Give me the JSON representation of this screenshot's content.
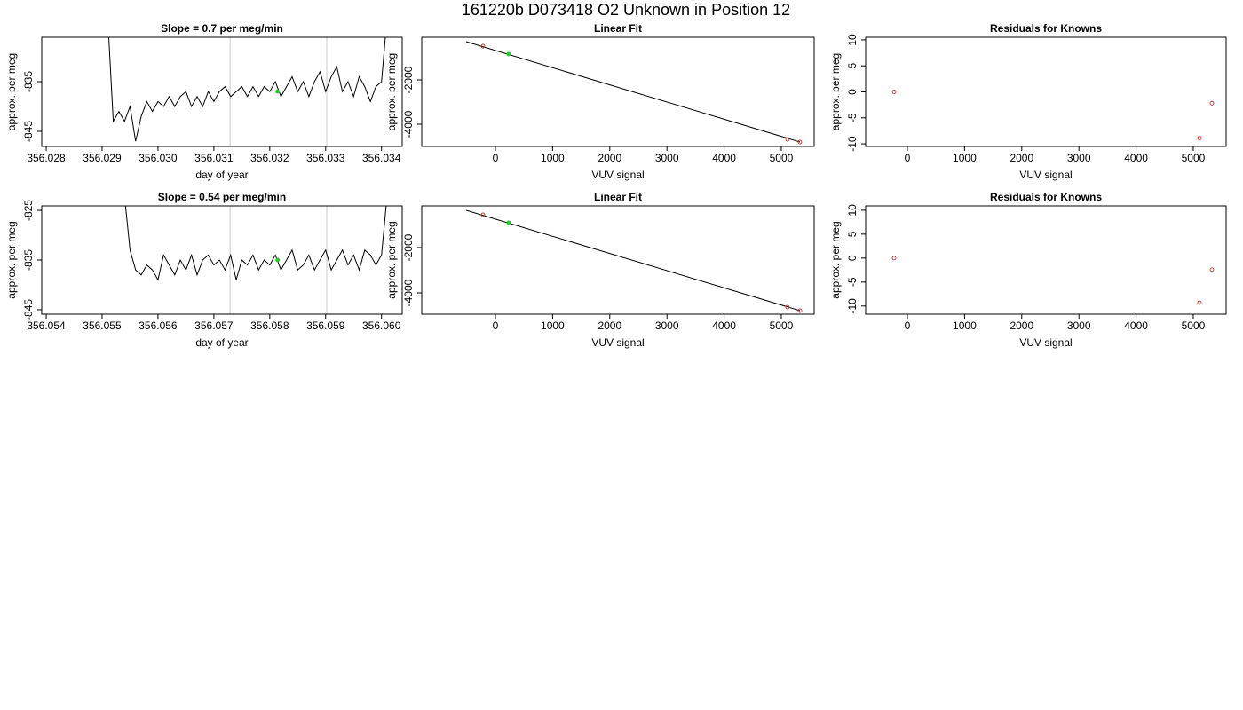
{
  "title": "161220b     D073418   O2 Unknown in Position  12",
  "chart_data": [
    {
      "type": "line",
      "title": "Slope =  0.7  per meg/min",
      "xlabel": "day of year",
      "ylabel": "approx. per meg",
      "xlim": [
        356.02792,
        356.03437
      ],
      "ylim": [
        -848.04,
        -826.07
      ],
      "xticks": [
        356.028,
        356.029,
        {
          "value": 356.03,
          "label": "356.030"
        },
        356.031,
        356.032,
        356.033,
        356.034
      ],
      "yticks": [
        -835,
        -845
      ],
      "vlines": [
        356.03129,
        356.03302
      ],
      "vline_color": "#d3d3d3",
      "series": [
        {
          "mode": "line",
          "color": "#000000",
          "x": [
            356.0291,
            356.0292,
            356.0293,
            356.0294,
            356.0295,
            356.0296,
            356.0297,
            356.0298,
            356.0299,
            356.03,
            356.0301,
            356.0302,
            356.0303,
            356.0304,
            356.0305,
            356.0306,
            356.0307,
            356.0308,
            356.0309,
            356.031,
            356.0311,
            356.0312,
            356.0313,
            356.0314,
            356.0315,
            356.0316,
            356.0317,
            356.0318,
            356.0319,
            356.032,
            356.0321,
            356.0322,
            356.0323,
            356.0324,
            356.0325,
            356.0326,
            356.0327,
            356.0328,
            356.0329,
            356.033,
            356.0331,
            356.0332,
            356.0333,
            356.0334,
            356.0335,
            356.0336,
            356.0337,
            356.0338,
            356.0339,
            356.034,
            356.0341
          ],
          "y": [
            -822,
            -843,
            -841,
            -843,
            -840,
            -847,
            -842,
            -839,
            -841,
            -839,
            -840,
            -838,
            -840,
            -838,
            -837,
            -840,
            -838,
            -840,
            -837,
            -839,
            -837,
            -836,
            -838,
            -837,
            -836,
            -838,
            -836,
            -838,
            -836,
            -837,
            -835,
            -838,
            -836,
            -834,
            -837,
            -835,
            -838,
            -835,
            -833,
            -837,
            -834,
            -832,
            -837,
            -835,
            -838,
            -834,
            -836,
            -839,
            -836,
            -835,
            -822
          ]
        },
        {
          "mode": "points",
          "filled": true,
          "color": "#22cc22",
          "x": [
            356.03214
          ],
          "y": [
            -836.96
          ]
        }
      ]
    },
    {
      "type": "scatter",
      "title": "Linear Fit",
      "xlabel": "VUV signal",
      "ylabel": "approx. per meg",
      "xlim": [
        -1289,
        5575
      ],
      "ylim": [
        -5000,
        -80
      ],
      "xticks": [
        0,
        1000,
        2000,
        3000,
        4000,
        5000
      ],
      "yticks": [
        -2000,
        -4000
      ],
      "series": [
        {
          "mode": "line",
          "color": "#000000",
          "x": [
            -512,
            5326
          ],
          "y": [
            -280,
            -4800
          ]
        },
        {
          "mode": "points",
          "filled": false,
          "color": "#cd3333",
          "x": [
            -217,
            5109,
            5326
          ],
          "y": [
            -480,
            -4680,
            -4800
          ]
        },
        {
          "mode": "points",
          "filled": true,
          "color": "#22cc22",
          "x": [
            233
          ],
          "y": [
            -840
          ]
        }
      ]
    },
    {
      "type": "scatter",
      "title": "Residuals for Knowns",
      "xlabel": "VUV signal",
      "ylabel": "approx. per meg",
      "xlim": [
        -730,
        5575
      ],
      "ylim": [
        -10.5,
        10.5
      ],
      "xticks": [
        0,
        1000,
        2000,
        3000,
        4000,
        5000
      ],
      "yticks": [
        10,
        5,
        0,
        -5,
        -10
      ],
      "series": [
        {
          "mode": "points",
          "filled": false,
          "color": "#cd3333",
          "x": [
            -233,
            5109,
            5326
          ],
          "y": [
            0,
            -8.9,
            -2.2
          ]
        }
      ]
    },
    {
      "type": "line",
      "title": "Slope =  0.54  per meg/min",
      "xlabel": "day of year",
      "ylabel": "approx. per meg",
      "xlim": [
        356.05392,
        356.06037
      ],
      "ylim": [
        -845.9,
        -824.1
      ],
      "xticks": [
        356.054,
        356.055,
        356.056,
        356.057,
        356.058,
        356.059,
        {
          "value": 356.06,
          "label": "356.060"
        }
      ],
      "yticks": [
        -825,
        -835,
        -845
      ],
      "vlines": [
        356.05729,
        356.05902
      ],
      "vline_color": "#d3d3d3",
      "series": [
        {
          "mode": "line",
          "color": "#000000",
          "x": [
            356.0554,
            356.0555,
            356.0556,
            356.0557,
            356.0558,
            356.0559,
            356.056,
            356.0561,
            356.0562,
            356.0563,
            356.0564,
            356.0565,
            356.0566,
            356.0567,
            356.0568,
            356.0569,
            356.057,
            356.0571,
            356.0572,
            356.0573,
            356.0574,
            356.0575,
            356.0576,
            356.0577,
            356.0578,
            356.0579,
            356.058,
            356.0581,
            356.0582,
            356.0583,
            356.0584,
            356.0585,
            356.0586,
            356.0587,
            356.0588,
            356.0589,
            356.059,
            356.0591,
            356.0592,
            356.0593,
            356.0594,
            356.0595,
            356.0596,
            356.0597,
            356.0598,
            356.0599,
            356.06,
            356.0601
          ],
          "y": [
            -822,
            -833,
            -837,
            -838,
            -836,
            -837,
            -839,
            -834,
            -836,
            -838,
            -835,
            -837,
            -834,
            -838,
            -835,
            -834,
            -836,
            -835,
            -837,
            -834,
            -839,
            -835,
            -836,
            -834,
            -837,
            -835,
            -836,
            -834,
            -837,
            -835,
            -833,
            -837,
            -836,
            -834,
            -837,
            -835,
            -833,
            -837,
            -835,
            -833,
            -836,
            -834,
            -837,
            -833,
            -834,
            -836,
            -834,
            -822
          ]
        },
        {
          "mode": "points",
          "filled": true,
          "color": "#22cc22",
          "x": [
            356.05814
          ],
          "y": [
            -835
          ]
        }
      ]
    },
    {
      "type": "scatter",
      "title": "Linear Fit",
      "xlabel": "VUV signal",
      "ylabel": "approx. per meg",
      "xlim": [
        -1289,
        5575
      ],
      "ylim": [
        -4941,
        -157
      ],
      "xticks": [
        0,
        1000,
        2000,
        3000,
        4000,
        5000
      ],
      "yticks": [
        -2000,
        -4000
      ],
      "series": [
        {
          "mode": "line",
          "color": "#000000",
          "x": [
            -512,
            5326
          ],
          "y": [
            -353,
            -4784
          ]
        },
        {
          "mode": "points",
          "filled": false,
          "color": "#cd3333",
          "x": [
            -217,
            5109,
            5326
          ],
          "y": [
            -549,
            -4627,
            -4784
          ]
        },
        {
          "mode": "points",
          "filled": true,
          "color": "#22cc22",
          "x": [
            233
          ],
          "y": [
            -902
          ]
        }
      ]
    },
    {
      "type": "scatter",
      "title": "Residuals for Knowns",
      "xlabel": "VUV signal",
      "ylabel": "approx. per meg",
      "xlim": [
        -730,
        5575
      ],
      "ylim": [
        -11.7,
        10.9
      ],
      "xticks": [
        0,
        1000,
        2000,
        3000,
        4000,
        5000
      ],
      "yticks": [
        10,
        5,
        0,
        -5,
        -10
      ],
      "series": [
        {
          "mode": "points",
          "filled": false,
          "color": "#cd3333",
          "x": [
            -233,
            5109,
            5326
          ],
          "y": [
            0,
            -9.3,
            -2.4
          ]
        }
      ]
    }
  ]
}
